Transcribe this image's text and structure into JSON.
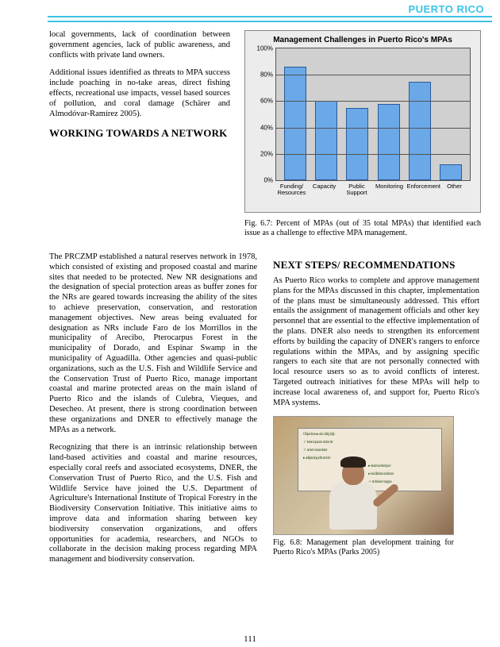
{
  "header": {
    "region": "PUERTO RICO"
  },
  "left_narrow": {
    "p1": "local governments, lack of coordination between government agencies, lack of public awareness, and conflicts with private land owners.",
    "p2": "Additional issues identified as threats to MPA success include poaching in no-take areas, direct fishing effects, recreational use impacts, vessel based sources of pollution, and coral damage (Schärer and Almodóvar-Ramírez 2005).",
    "h1": "WORKING TOWARDS A NETWORK"
  },
  "left_wide": {
    "p3": "The PRCZMP established a natural reserves network in 1978, which consisted of existing and proposed coastal and marine sites that needed to be protected.  New NR designations and the designation of special protection areas as buffer zones for the NRs are geared towards increasing the ability of the sites to achieve preservation, conservation, and restoration management objectives.  New areas being evaluated for designation as NRs include Faro de los Morrillos in the municipality of Arecibo, Pterocarpus Forest in the municipality of Dorado, and Espinar Swamp in the municipality of Aguadilla.  Other agencies and quasi-public organizations, such as the U.S. Fish and Wildlife Service and the Conservation Trust of Puerto Rico, manage important coastal and marine protected areas on the main island of Puerto Rico and the islands of Culebra, Vieques, and Desecheo.  At present, there is strong coordination between these organizations and DNER to effectively manage the MPAs as a network.",
    "p4": "Recognizing that there is an intrinsic relationship between land-based activities and coastal and marine resources, especially coral reefs and associated ecosystems, DNER, the Conservation Trust of Puerto Rico, and the U.S. Fish and Wildlife Service have joined the U.S. Department of Agriculture's International Institute of Tropical Forestry in the Biodiversity Conservation Initiative.  This initiative aims to improve data and information sharing between key biodiversity conservation organizations, and offers opportunities for academia, researchers, and NGOs to collaborate in the decision making process regarding MPA management and biodiversity conservation."
  },
  "chart": {
    "type": "bar",
    "title": "Management Challenges in Puerto Rico's MPAs",
    "categories": [
      "Funding/ Resources",
      "Capacity",
      "Public Support",
      "Monitoring",
      "Enforcement",
      "Other"
    ],
    "values": [
      86,
      60,
      55,
      58,
      75,
      12
    ],
    "ylim": [
      0,
      100
    ],
    "ytick_step": 20,
    "y_suffix": "%",
    "bar_fill": "#6aa8e8",
    "bar_border": "#2a5a9a",
    "plot_bg": "#d0d0d0",
    "panel_bg": "#ececec",
    "grid_color": "#555555",
    "title_fontsize": 10,
    "axis_fontsize": 8
  },
  "chart_caption": "Fig. 6.7: Percent of MPAs (out of 35 total MPAs) that identified each issue as a challenge to effective MPA management.",
  "right": {
    "h2": "NEXT STEPS/ RECOMMENDATIONS",
    "p5": "As Puerto Rico works to complete and approve management plans for the MPAs discussed in this chapter, implementation of the plans must be simultaneously addressed.  This effort entails the assignment of management officials and other key personnel that are essential to the effective implementation of the plans.  DNER also needs to strengthen its enforcement efforts by building the capacity of DNER's rangers to enforce regulations within the MPAs, and by assigning specific rangers to each site that are not personally connected with local resource users so as to avoid conflicts of interest. Targeted outreach initiatives for these MPAs will help to increase local awareness of, and support for, Puerto Rico's MPA systems.",
    "photo_caption": "Fig. 6.8: Management plan development training for Puerto Rico's MPAs (Parks 2005)"
  },
  "page_number": "111"
}
